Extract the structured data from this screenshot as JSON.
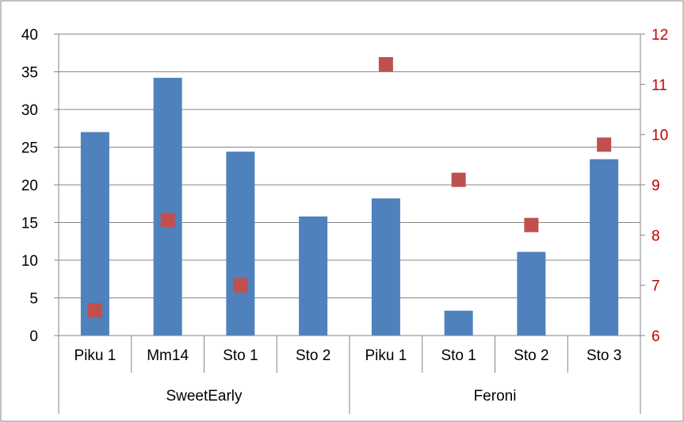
{
  "chart_data": {
    "type": "bar",
    "groups": [
      {
        "label": "SweetEarly",
        "categories": [
          "Piku 1",
          "Mm14",
          "Sto 1",
          "Sto 2"
        ]
      },
      {
        "label": "Feroni",
        "categories": [
          "Piku 1",
          "Sto 1",
          "Sto 2",
          "Sto 3"
        ]
      }
    ],
    "categories": [
      "Piku 1",
      "Mm14",
      "Sto 1",
      "Sto 2",
      "Piku 1",
      "Sto 1",
      "Sto 2",
      "Sto 3"
    ],
    "series": [
      {
        "type": "bar",
        "axis": "left",
        "color": "#4F81BD",
        "values": [
          27.0,
          34.2,
          24.4,
          15.8,
          18.2,
          3.3,
          11.1,
          23.4
        ]
      },
      {
        "type": "scatter",
        "axis": "right",
        "marker": "square",
        "color": "#C0504D",
        "values": [
          6.5,
          8.3,
          7.0,
          null,
          11.4,
          9.1,
          8.2,
          9.8
        ]
      }
    ],
    "y_left": {
      "min": 0,
      "max": 40,
      "step": 5,
      "ticks": [
        "0",
        "5",
        "10",
        "15",
        "20",
        "25",
        "30",
        "35",
        "40"
      ],
      "color": "#000000"
    },
    "y_right": {
      "min": 6,
      "max": 12,
      "step": 1,
      "ticks": [
        "6",
        "7",
        "8",
        "9",
        "10",
        "11",
        "12"
      ],
      "color": "#C00000"
    },
    "grid": true,
    "legend": "none"
  }
}
